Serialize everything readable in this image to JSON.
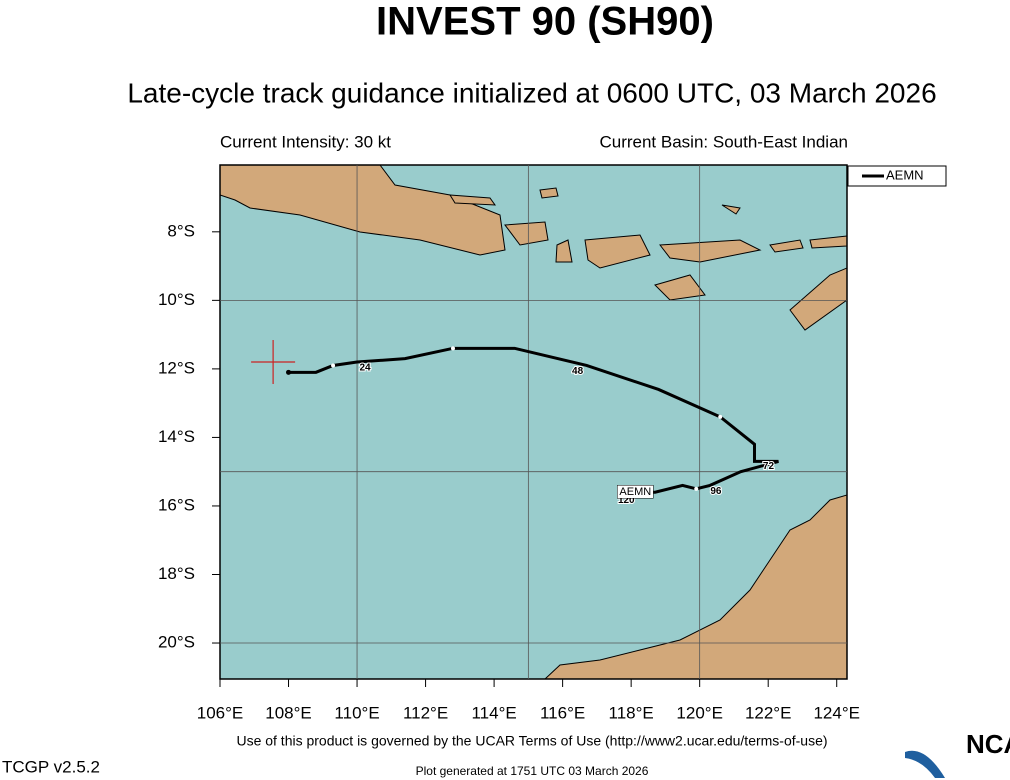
{
  "chart_data": {
    "type": "track-map",
    "title": "INVEST 90 (SH90)",
    "subtitle": "Late-cycle track guidance initialized at 0600 UTC, 03 March 2026",
    "intensity_text": "Current Intensity: 30 kt",
    "basin_text": "Current Basin: South-East Indian",
    "xlim": [
      106,
      124.3
    ],
    "ylim": [
      -21.05,
      -6.05
    ],
    "xticks": [
      {
        "value": 106,
        "label": "106°E"
      },
      {
        "value": 108,
        "label": "108°E"
      },
      {
        "value": 110,
        "label": "110°E"
      },
      {
        "value": 112,
        "label": "112°E"
      },
      {
        "value": 114,
        "label": "114°E"
      },
      {
        "value": 116,
        "label": "116°E"
      },
      {
        "value": 118,
        "label": "118°E"
      },
      {
        "value": 120,
        "label": "120°E"
      },
      {
        "value": 122,
        "label": "122°E"
      },
      {
        "value": 124,
        "label": "124°E"
      }
    ],
    "yticks": [
      {
        "value": -8,
        "label": "8°S"
      },
      {
        "value": -10,
        "label": "10°S"
      },
      {
        "value": -12,
        "label": "12°S"
      },
      {
        "value": -14,
        "label": "14°S"
      },
      {
        "value": -16,
        "label": "16°S"
      },
      {
        "value": -18,
        "label": "18°S"
      },
      {
        "value": -20,
        "label": "20°S"
      }
    ],
    "grid_lons": [
      110,
      115,
      120
    ],
    "grid_lats": [
      -10,
      -15,
      -20
    ],
    "current_position": {
      "lon": 107.55,
      "lat": -11.8,
      "color": "#cc2222"
    },
    "series": [
      {
        "name": "AEMN",
        "color": "#000000",
        "x": [
          108.0,
          108.8,
          109.3,
          110.0,
          111.4,
          112.8,
          114.6,
          116.7,
          118.8,
          120.6,
          121.6,
          121.6,
          122.3,
          121.2,
          120.3,
          119.9,
          119.5,
          118.7,
          117.8
        ],
        "values": [
          -12.1,
          -12.1,
          -11.9,
          -11.8,
          -11.7,
          -11.4,
          -11.4,
          -11.9,
          -12.6,
          -13.4,
          -14.2,
          -14.7,
          -14.7,
          -15.0,
          -15.4,
          -15.5,
          -15.4,
          -15.6,
          -15.6
        ],
        "hour_labels": [
          24,
          48,
          72,
          96,
          120
        ]
      }
    ],
    "terms": "Use of this product is governed by the UCAR Terms of Use (http://www2.ucar.edu/terms-of-use)",
    "version": "TCGP v2.5.2",
    "generated": "Plot generated at 1751 UTC   03 March 2026",
    "logo": "NCAR"
  }
}
